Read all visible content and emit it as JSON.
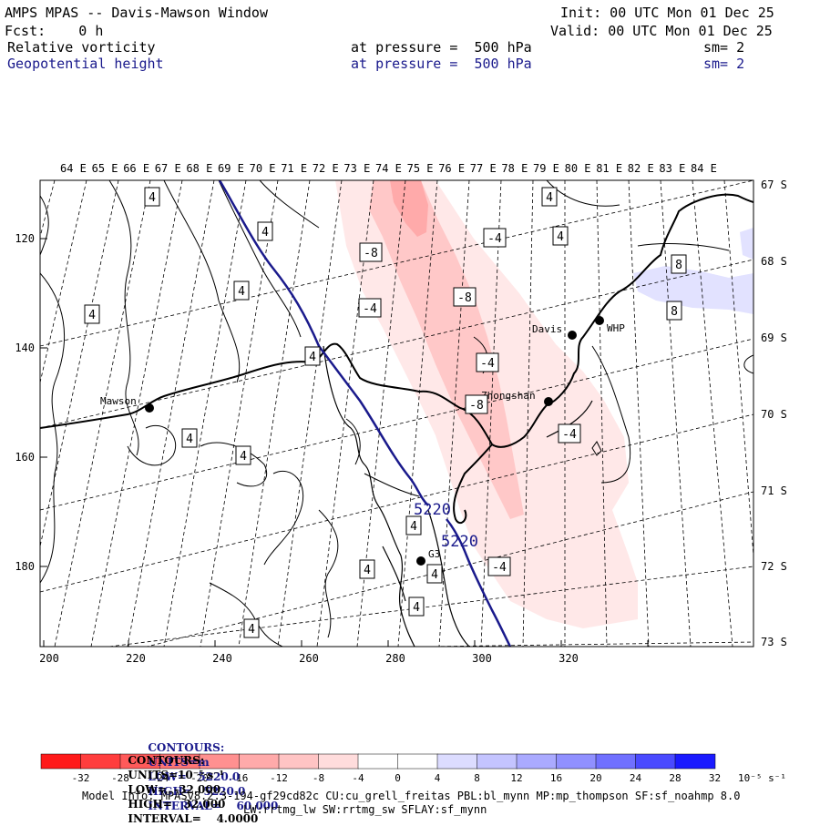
{
  "header": {
    "title": "AMPS MPAS -- Davis-Mawson Window",
    "fcst": "Fcst:    0 h",
    "init": "Init: 00 UTC Mon 01 Dec 25",
    "valid": "Valid: 00 UTC Mon 01 Dec 25",
    "fields": [
      {
        "name": "Relative vorticity",
        "pressure": "at pressure =  500 hPa",
        "sm": "sm= 2"
      },
      {
        "name": "Geopotential height",
        "pressure": "at pressure =  500 hPa",
        "sm": "sm= 2"
      }
    ]
  },
  "axes": {
    "top_longitudes": [
      "64 E",
      "65 E",
      "66 E",
      "67 E",
      "68 E",
      "69 E",
      "70 E",
      "71 E",
      "72 E",
      "73 E",
      "74 E",
      "75 E",
      "76 E",
      "77 E",
      "78 E",
      "79 E",
      "80 E",
      "81 E",
      "82 E",
      "83 E",
      "84 E"
    ],
    "right_latitudes": [
      "67 S",
      "68 S",
      "69 S",
      "70 S",
      "71 S",
      "72 S",
      "73 S"
    ],
    "bottom_ticks": [
      "200",
      "220",
      "240",
      "260",
      "280",
      "300",
      "320"
    ],
    "left_ticks": [
      "120",
      "140",
      "160",
      "180"
    ]
  },
  "stations": [
    {
      "name": "Mawson"
    },
    {
      "name": "Davis"
    },
    {
      "name": "WHP"
    },
    {
      "name": "Zhongshan"
    },
    {
      "name": "G3"
    }
  ],
  "contour_labels": {
    "vorticity": [
      "4",
      "4",
      "4",
      "4",
      "4",
      "4",
      "4",
      "4",
      "4",
      "4",
      "4",
      "4",
      "4",
      "4",
      "-8",
      "-4",
      "-8",
      "-4",
      "-4",
      "-8",
      "-4",
      "-4",
      "8"
    ],
    "height": [
      "5220",
      "5220"
    ]
  },
  "footer": {
    "height_line": {
      "contours": "CONTOURS:",
      "units": "UNITS=m",
      "low": "LOW=   5220.0",
      "high": "HIGH=   5220.0",
      "interval": "INTERVAL=    60.000"
    },
    "vort_line": {
      "contours": "CONTOURS:",
      "units": "UNITS=10⁻⁵ s⁻¹",
      "low": "LOW=  -32.000",
      "high": "HIGH=   32.000",
      "interval": "INTERVAL=    4.0000"
    },
    "colorbar_labels": [
      "-32",
      "-28",
      "-24",
      "-20",
      "-16",
      "-12",
      "-8",
      "-4",
      "0",
      "4",
      "8",
      "12",
      "16",
      "20",
      "24",
      "28",
      "32"
    ],
    "colorbar_unit": "10⁻⁵ s⁻¹",
    "colorbar_colors": [
      "#ff1a1a",
      "#ff3d3d",
      "#ff5a5a",
      "#ff7575",
      "#ff9090",
      "#ffaaaa",
      "#ffc4c4",
      "#ffdcdc",
      "#ffffff",
      "#ffffff",
      "#dcdcff",
      "#c4c4ff",
      "#aaaaff",
      "#9090ff",
      "#7070ff",
      "#4a4aff",
      "#1a1aff"
    ],
    "model_info_1": "Model Info: MPASv8.2.3-194-gf29cd82c CU:cu_grell_freitas PBL:bl_mynn MP:mp_thompson SF:sf_noahmp 8.0",
    "model_info_2": "LW:rrtmg_lw SW:rrtmg_sw SFLAY:sf_mynn"
  }
}
